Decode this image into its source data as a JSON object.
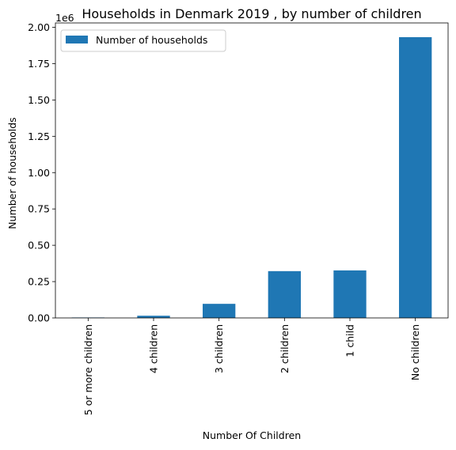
{
  "chart_data": {
    "type": "bar",
    "title": "Households in Denmark 2019 , by number of children",
    "xlabel": "Number Of Children",
    "ylabel": "Number of households",
    "y_multiplier_label": "1e6",
    "categories": [
      "5 or more children",
      "4 children",
      "3 children",
      "2 children",
      "1 child",
      "No children"
    ],
    "series": [
      {
        "name": "Number of households",
        "values": [
          3000,
          15000,
          97000,
          322000,
          327000,
          1932000
        ],
        "color": "#1f77b4"
      }
    ],
    "ylim": [
      0,
      2030000
    ],
    "y_ticks": [
      0,
      250000,
      500000,
      750000,
      1000000,
      1250000,
      1500000,
      1750000,
      2000000
    ],
    "y_tick_labels": [
      "0.00",
      "0.25",
      "0.50",
      "0.75",
      "1.00",
      "1.25",
      "1.50",
      "1.75",
      "2.00"
    ],
    "legend_placement": "top-left",
    "grid": false
  }
}
